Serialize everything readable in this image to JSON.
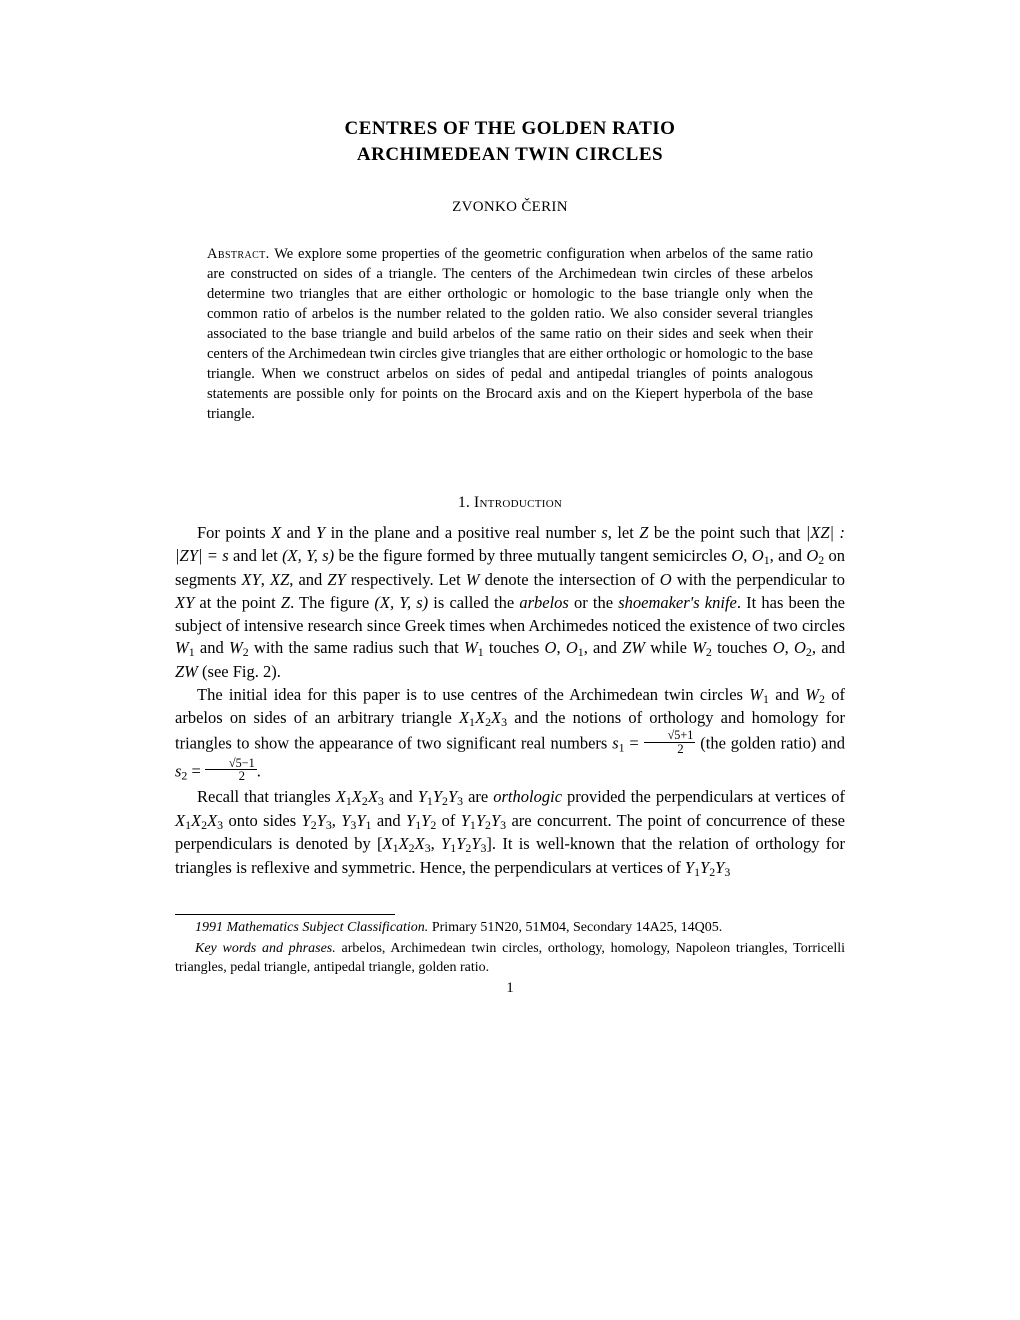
{
  "title": {
    "line1": "CENTRES OF THE GOLDEN RATIO",
    "line2": "ARCHIMEDEAN TWIN CIRCLES"
  },
  "author": "ZVONKO ČERIN",
  "abstract": {
    "label": "Abstract.",
    "text": "We explore some properties of the geometric configuration when arbelos of the same ratio are constructed on sides of a triangle. The centers of the Archimedean twin circles of these arbelos determine two triangles that are either orthologic or homologic to the base triangle only when the common ratio of arbelos is the number related to the golden ratio. We also consider several triangles associated to the base triangle and build arbelos of the same ratio on their sides and seek when their centers of the Archimedean twin circles give triangles that are either orthologic or homologic to the base triangle. When we construct arbelos on sides of pedal and antipedal triangles of points analogous statements are possible only for points on the Brocard axis and on the Kiepert hyperbola of the base triangle."
  },
  "section": {
    "number": "1.",
    "name": "Introduction"
  },
  "footnotes": {
    "msc_label": "1991 Mathematics Subject Classification.",
    "msc_text": "Primary 51N20, 51M04, Secondary 14A25, 14Q05.",
    "kw_label": "Key words and phrases.",
    "kw_text": "arbelos, Archimedean twin circles, orthology, homology, Napoleon triangles, Torricelli triangles, pedal triangle, antipedal triangle, golden ratio."
  },
  "page_number": "1",
  "body": {
    "p1_a": "For points ",
    "p1_b": " in the plane and a positive real number ",
    "p1_c": ", let ",
    "p1_d": " be the point such that ",
    "p1_e": " and let ",
    "p1_f": " be the figure formed by three mutually tangent semicircles ",
    "p1_g": " on segments ",
    "p1_h": " respectively. Let ",
    "p1_i": " denote the intersection of ",
    "p1_j": " with the perpendicular to ",
    "p1_k": " at the point ",
    "p1_l": ". The figure ",
    "p1_m": " is called the ",
    "p1_arbelos": "arbelos",
    "p1_n": " or the ",
    "p1_shoe": "shoemaker's knife",
    "p1_o": ". It has been the subject of intensive research since Greek times when Archimedes noticed the existence of two circles ",
    "p1_p": " with the same radius such that ",
    "p1_q": " touches ",
    "p1_r": " while ",
    "p1_s": " (see Fig. 2).",
    "p2_a": "The initial idea for this paper is to use centres of the Archimedean twin circles ",
    "p2_b": " of arbelos on sides of an arbitrary triangle ",
    "p2_c": " and the notions of orthology and homology for triangles to show the appearance of two significant real numbers ",
    "p2_d": " (the golden ratio) and ",
    "p3_a": "Recall that triangles ",
    "p3_b": " are ",
    "p3_ortho": "orthologic",
    "p3_c": " provided the perpendiculars at vertices of ",
    "p3_d": " onto sides ",
    "p3_e": " of ",
    "p3_f": " are concurrent.  The point of concurrence of these perpendiculars is denoted by ",
    "p3_g": ".  It is well-known that the relation of orthology for triangles is reflexive and symmetric.  Hence, the perpendiculars at vertices of "
  },
  "math": {
    "X": "X",
    "Y": "Y",
    "Z": "Z",
    "s": "s",
    "and": " and ",
    "XZ_ZY_s": "|XZ| : |ZY| = s",
    "XYs": "(X, Y, s)",
    "O": "O",
    "O1": "O",
    "O2": "O",
    "XY": "XY",
    "XZ": "XZ",
    "ZY": "ZY",
    "W": "W",
    "W1": "W",
    "W2": "W",
    "ZW": "ZW",
    "X1X2X3": "X",
    "Y1Y2Y3": "Y",
    "Y2Y3": "Y",
    "Y3Y1": "Y",
    "Y1Y2": "Y",
    "s1eq": "s",
    "s2eq": "s",
    "sqrt5p1": "√5+1",
    "sqrt5m1": "√5−1",
    "two": "2",
    "comma": ", ",
    "bracket_open": "[",
    "bracket_close": "]"
  }
}
